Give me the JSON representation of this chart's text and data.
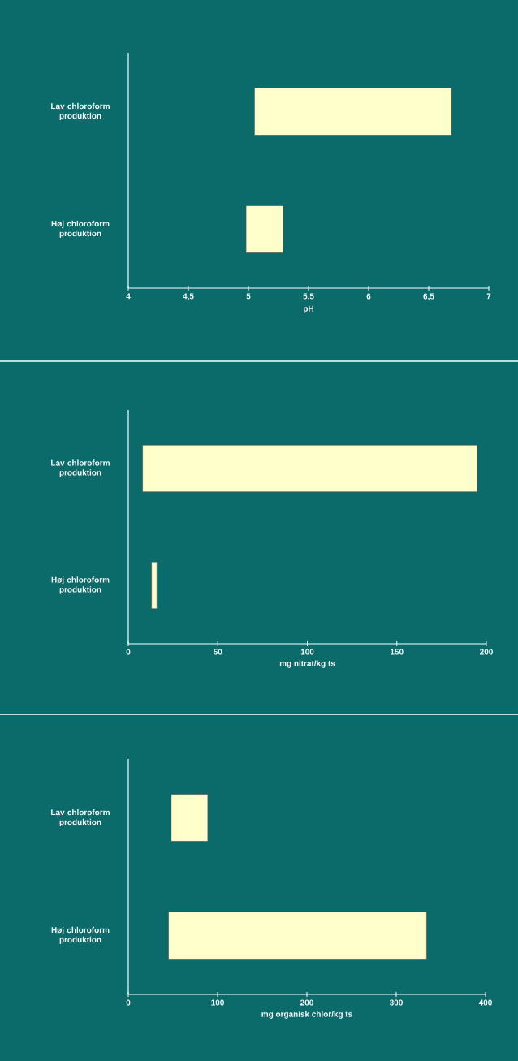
{
  "chart_data": [
    {
      "type": "bar",
      "orientation": "horizontal",
      "categories": [
        "Lav chloroform produktion",
        "Høj chloroform produktion"
      ],
      "base": [
        5.05,
        4.98
      ],
      "values": [
        1.64,
        0.31
      ],
      "color": "#ffffcc",
      "xlim": [
        4,
        7
      ],
      "xticks": [
        4,
        {
          "value": 4.5,
          "label": "4,5"
        },
        5,
        {
          "value": 5.5,
          "label": "5,5"
        },
        6,
        {
          "value": 6.5,
          "label": "6,5"
        },
        7
      ],
      "xlabel": "pH",
      "grid": false
    },
    {
      "type": "bar",
      "orientation": "horizontal",
      "categories": [
        "Lav chloroform produktion",
        "Høj chloroform produktion"
      ],
      "base": [
        8,
        13
      ],
      "values": [
        187,
        3
      ],
      "color": "#ffffcc",
      "xlim": [
        0,
        200
      ],
      "xticks": [
        0,
        50,
        100,
        150,
        200
      ],
      "xlabel": "mg nitrat/kg ts",
      "grid": false
    },
    {
      "type": "bar",
      "orientation": "horizontal",
      "categories": [
        "Lav chloroform produktion",
        "Høj chloroform produktion"
      ],
      "base": [
        48,
        45
      ],
      "values": [
        41,
        289
      ],
      "color": "#ffffcc",
      "xlim": [
        0,
        400
      ],
      "xticks": [
        0,
        100,
        200,
        300,
        400
      ],
      "xlabel": "mg organisk chlor/kg ts",
      "grid": false
    }
  ]
}
